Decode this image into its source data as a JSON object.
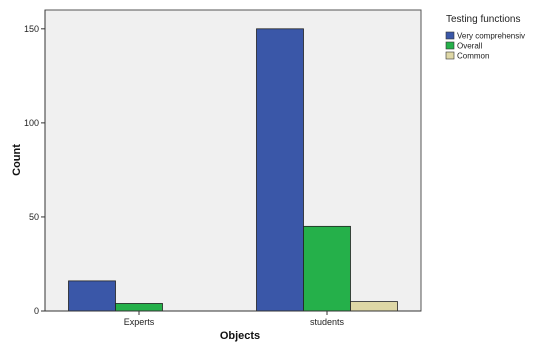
{
  "chart_data": {
    "type": "bar",
    "categories": [
      "Experts",
      "students"
    ],
    "series": [
      {
        "name": "Very comprehensiv",
        "values": [
          16,
          150
        ],
        "color": "#3a57a8"
      },
      {
        "name": "Overall",
        "values": [
          4,
          45
        ],
        "color": "#25b04a"
      },
      {
        "name": "Common",
        "values": [
          0,
          5
        ],
        "color": "#ded7a6"
      }
    ],
    "xlabel": "Objects",
    "ylabel": "Count",
    "ylim": [
      0,
      160
    ],
    "yticks": [
      0,
      50,
      100,
      150
    ],
    "legend_title": "Testing functions",
    "legend_position": "top-right",
    "grid": false,
    "plot_background": "#f0f0f0"
  }
}
